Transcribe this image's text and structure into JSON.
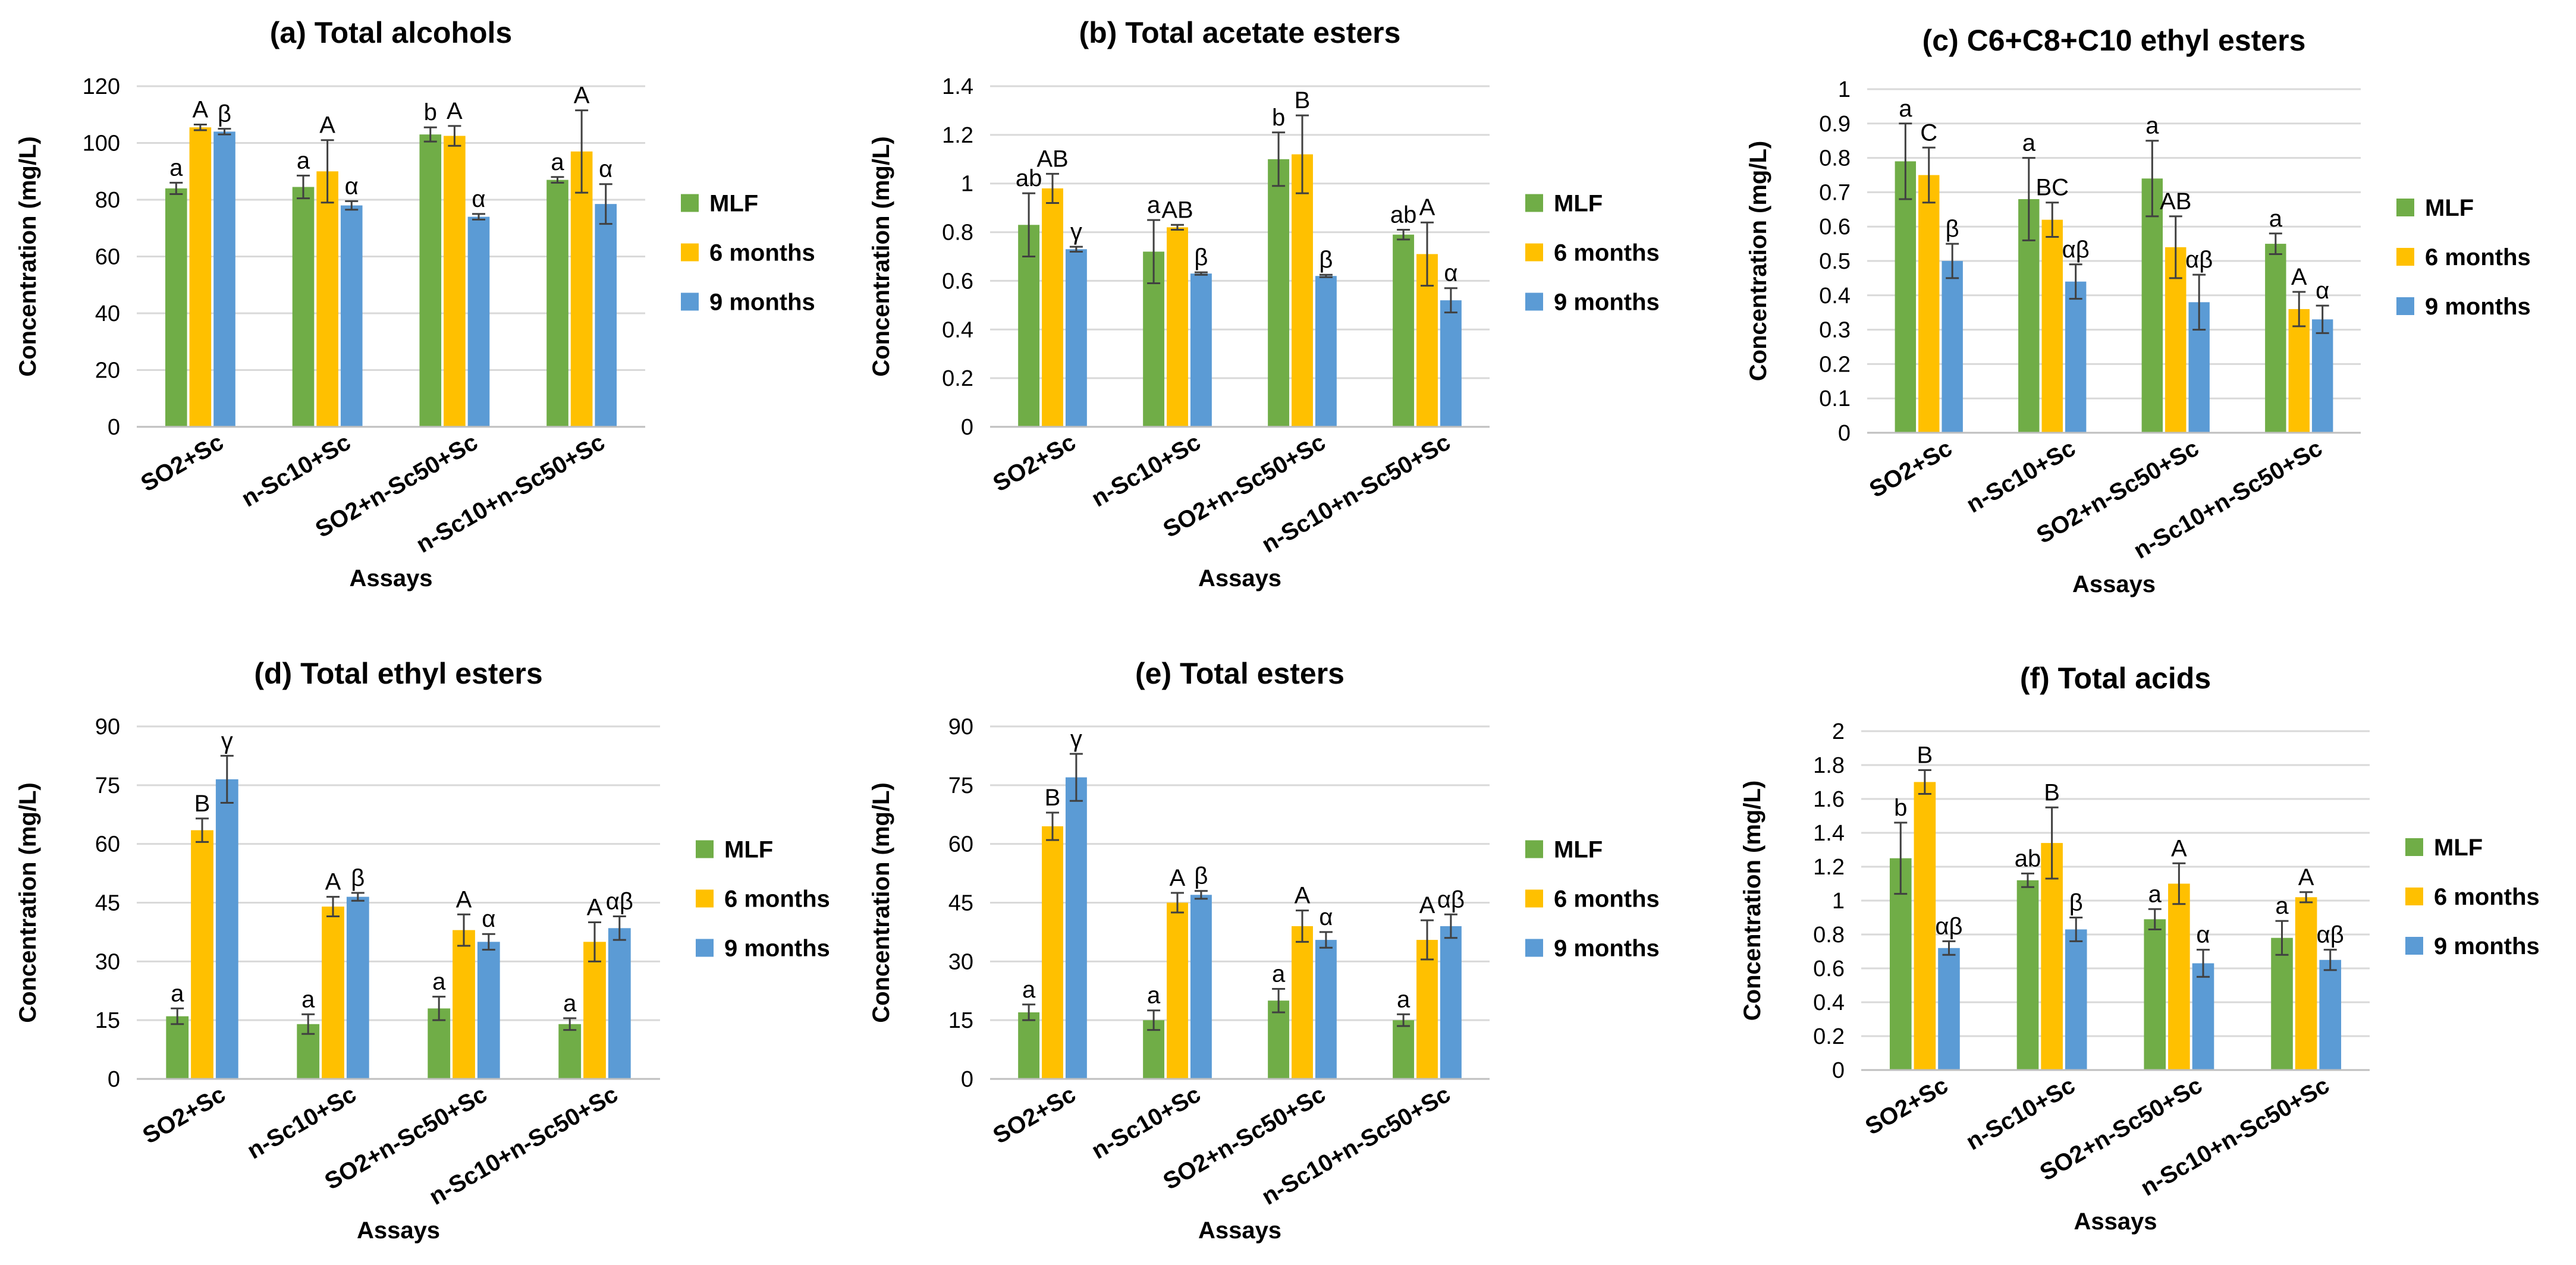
{
  "chart_data": [
    {
      "id": "a",
      "type": "bar",
      "title": "(a) Total alcohols",
      "xlabel": "Assays",
      "ylabel": "Concentration (mg/L)",
      "ylim": [
        0,
        120
      ],
      "yticks": [
        "0",
        "20",
        "40",
        "60",
        "80",
        "100",
        "120"
      ],
      "categories": [
        "SO2+Sc",
        "n-Sc10+Sc",
        "SO2+n-Sc50+Sc",
        "n-Sc10+n-Sc50+Sc"
      ],
      "series": [
        {
          "name": "MLF",
          "values": [
            84,
            84.5,
            103,
            87
          ],
          "errors": [
            2,
            4,
            2.5,
            1
          ],
          "labels": [
            "a",
            "a",
            "b",
            "a"
          ]
        },
        {
          "name": "6 months",
          "values": [
            105.5,
            90,
            102.5,
            97
          ],
          "errors": [
            1,
            11,
            3.5,
            14.5
          ],
          "labels": [
            "A",
            "A",
            "A",
            "A"
          ]
        },
        {
          "name": "9 months",
          "values": [
            104,
            78,
            74,
            78.5
          ],
          "errors": [
            1,
            1.5,
            1,
            7
          ],
          "labels": [
            "β",
            "α",
            "α",
            "α"
          ]
        }
      ]
    },
    {
      "id": "b",
      "type": "bar",
      "title": "(b) Total acetate esters",
      "xlabel": "Assays",
      "ylabel": "Concentration (mg/L)",
      "ylim": [
        0,
        1.4
      ],
      "yticks": [
        "0",
        "0.2",
        "0.4",
        "0.6",
        "0.8",
        "1",
        "1.2",
        "1.4"
      ],
      "categories": [
        "SO2+Sc",
        "n-Sc10+Sc",
        "SO2+n-Sc50+Sc",
        "n-Sc10+n-Sc50+Sc"
      ],
      "series": [
        {
          "name": "MLF",
          "values": [
            0.83,
            0.72,
            1.1,
            0.79
          ],
          "errors": [
            0.13,
            0.13,
            0.11,
            0.02
          ],
          "labels": [
            "ab",
            "a",
            "b",
            "ab"
          ]
        },
        {
          "name": "6 months",
          "values": [
            0.98,
            0.82,
            1.12,
            0.71
          ],
          "errors": [
            0.06,
            0.01,
            0.16,
            0.13
          ],
          "labels": [
            "AB",
            "AB",
            "B",
            "A"
          ]
        },
        {
          "name": "9 months",
          "values": [
            0.73,
            0.63,
            0.62,
            0.52
          ],
          "errors": [
            0.01,
            0.005,
            0.005,
            0.05
          ],
          "labels": [
            "γ",
            "β",
            "β",
            "α"
          ]
        }
      ]
    },
    {
      "id": "c",
      "type": "bar",
      "title": "(c) C6+C8+C10 ethyl esters",
      "xlabel": "Assays",
      "ylabel": "Concentration (mg/L)",
      "ylim": [
        0,
        1
      ],
      "yticks": [
        "0",
        "0.1",
        "0.2",
        "0.3",
        "0.4",
        "0.5",
        "0.6",
        "0.7",
        "0.8",
        "0.9",
        "1"
      ],
      "categories": [
        "SO2+Sc",
        "n-Sc10+Sc",
        "SO2+n-Sc50+Sc",
        "n-Sc10+n-Sc50+Sc"
      ],
      "series": [
        {
          "name": "MLF",
          "values": [
            0.79,
            0.68,
            0.74,
            0.55
          ],
          "errors": [
            0.11,
            0.12,
            0.11,
            0.03
          ],
          "labels": [
            "a",
            "a",
            "a",
            "a"
          ]
        },
        {
          "name": "6 months",
          "values": [
            0.75,
            0.62,
            0.54,
            0.36
          ],
          "errors": [
            0.08,
            0.05,
            0.09,
            0.05
          ],
          "labels": [
            "C",
            "BC",
            "AB",
            "A"
          ]
        },
        {
          "name": "9 months",
          "values": [
            0.5,
            0.44,
            0.38,
            0.33
          ],
          "errors": [
            0.05,
            0.05,
            0.08,
            0.04
          ],
          "labels": [
            "β",
            "αβ",
            "αβ",
            "α"
          ]
        }
      ]
    },
    {
      "id": "d",
      "type": "bar",
      "title": "(d) Total ethyl esters",
      "xlabel": "Assays",
      "ylabel": "Concentration (mg/L)",
      "ylim": [
        0,
        90
      ],
      "yticks": [
        "0",
        "15",
        "30",
        "45",
        "60",
        "75",
        "90"
      ],
      "categories": [
        "SO2+Sc",
        "n-Sc10+Sc",
        "SO2+n-Sc50+Sc",
        "n-Sc10+n-Sc50+Sc"
      ],
      "series": [
        {
          "name": "MLF",
          "values": [
            16,
            14,
            18,
            14
          ],
          "errors": [
            2,
            2.5,
            3,
            1.5
          ],
          "labels": [
            "a",
            "a",
            "a",
            "a"
          ]
        },
        {
          "name": "6 months",
          "values": [
            63.5,
            44,
            38,
            35
          ],
          "errors": [
            3,
            2.5,
            4,
            5
          ],
          "labels": [
            "B",
            "A",
            "A",
            "A"
          ]
        },
        {
          "name": "9 months",
          "values": [
            76.5,
            46.5,
            35,
            38.5
          ],
          "errors": [
            6,
            1,
            2,
            3
          ],
          "labels": [
            "γ",
            "β",
            "α",
            "αβ"
          ]
        }
      ]
    },
    {
      "id": "e",
      "type": "bar",
      "title": "(e) Total esters",
      "xlabel": "Assays",
      "ylabel": "Concentration (mg/L)",
      "ylim": [
        0,
        90
      ],
      "yticks": [
        "0",
        "15",
        "30",
        "45",
        "60",
        "75",
        "90"
      ],
      "categories": [
        "SO2+Sc",
        "n-Sc10+Sc",
        "SO2+n-Sc50+Sc",
        "n-Sc10+n-Sc50+Sc"
      ],
      "series": [
        {
          "name": "MLF",
          "values": [
            17,
            15,
            20,
            15
          ],
          "errors": [
            2,
            2.5,
            3,
            1.5
          ],
          "labels": [
            "a",
            "a",
            "a",
            "a"
          ]
        },
        {
          "name": "6 months",
          "values": [
            64.5,
            45,
            39,
            35.5
          ],
          "errors": [
            3.5,
            2.5,
            4,
            5
          ],
          "labels": [
            "B",
            "A",
            "A",
            "A"
          ]
        },
        {
          "name": "9 months",
          "values": [
            77,
            47,
            35.5,
            39
          ],
          "errors": [
            6,
            1,
            2,
            3
          ],
          "labels": [
            "γ",
            "β",
            "α",
            "αβ"
          ]
        }
      ]
    },
    {
      "id": "f",
      "type": "bar",
      "title": "(f) Total acids",
      "xlabel": "Assays",
      "ylabel": "Concentration (mg/L)",
      "ylim": [
        0,
        2
      ],
      "yticks": [
        "0",
        "0.2",
        "0.4",
        "0.6",
        "0.8",
        "1",
        "1.2",
        "1.4",
        "1.6",
        "1.8",
        "2"
      ],
      "categories": [
        "SO2+Sc",
        "n-Sc10+Sc",
        "SO2+n-Sc50+Sc",
        "n-Sc10+n-Sc50+Sc"
      ],
      "series": [
        {
          "name": "MLF",
          "values": [
            1.25,
            1.12,
            0.89,
            0.78
          ],
          "errors": [
            0.21,
            0.04,
            0.06,
            0.1
          ],
          "labels": [
            "b",
            "ab",
            "a",
            "a"
          ]
        },
        {
          "name": "6 months",
          "values": [
            1.7,
            1.34,
            1.1,
            1.02
          ],
          "errors": [
            0.07,
            0.21,
            0.12,
            0.03
          ],
          "labels": [
            "B",
            "B",
            "A",
            "A"
          ]
        },
        {
          "name": "9 months",
          "values": [
            0.72,
            0.83,
            0.63,
            0.65
          ],
          "errors": [
            0.04,
            0.07,
            0.08,
            0.06
          ],
          "labels": [
            "αβ",
            "β",
            "α",
            "αβ"
          ]
        }
      ]
    }
  ],
  "legend": [
    "MLF",
    "6 months",
    "9 months"
  ],
  "colors": {
    "MLF": "#70ad47",
    "6 months": "#ffc000",
    "9 months": "#5b9bd5",
    "grid": "#d9d9d9",
    "error": "#404040"
  }
}
